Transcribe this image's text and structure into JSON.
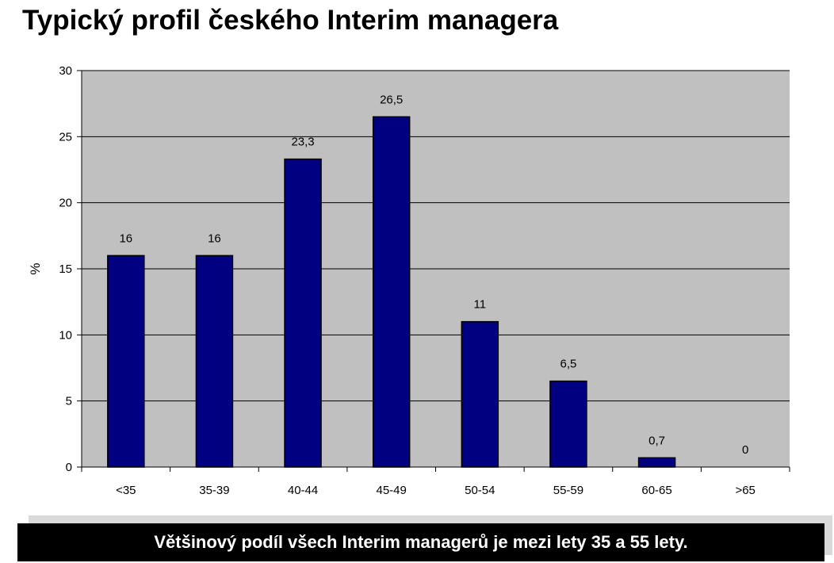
{
  "page": {
    "title": "Typický profil českého Interim managera",
    "caption": "Většinový podíl všech Interim managerů je mezi lety 35 a 55 lety."
  },
  "colors": {
    "bar": "#000080",
    "plot_background": "#c0c0c0",
    "gridline": "#000000"
  },
  "chart_data": {
    "type": "bar",
    "categories": [
      "<35",
      "35-39",
      "40-44",
      "45-49",
      "50-54",
      "55-59",
      "60-65",
      ">65"
    ],
    "values": [
      16,
      16,
      23.3,
      26.5,
      11,
      6.5,
      0.7,
      0
    ],
    "data_labels": [
      "16",
      "16",
      "23,3",
      "26,5",
      "11",
      "6,5",
      "0,7",
      "0"
    ],
    "title": "",
    "xlabel": "",
    "ylabel": "%",
    "ylim": [
      0,
      30
    ],
    "yticks": [
      0,
      5,
      10,
      15,
      20,
      25,
      30
    ],
    "grid": true,
    "legend": "none"
  }
}
